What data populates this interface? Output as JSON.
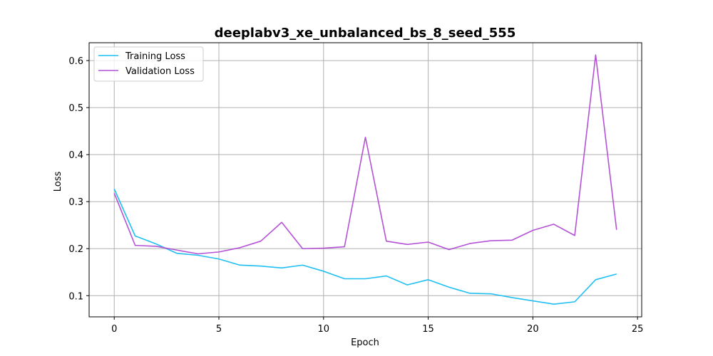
{
  "chart_data": {
    "type": "line",
    "title": "deeplabv3_xe_unbalanced_bs_8_seed_555",
    "xlabel": "Epoch",
    "ylabel": "Loss",
    "xlim": [
      -1.2,
      25.2
    ],
    "ylim": [
      0.055,
      0.638
    ],
    "xticks": [
      0,
      5,
      10,
      15,
      20,
      25
    ],
    "yticks": [
      0.1,
      0.2,
      0.3,
      0.4,
      0.5,
      0.6
    ],
    "xtick_labels": [
      "0",
      "5",
      "10",
      "15",
      "20",
      "25"
    ],
    "ytick_labels": [
      "0.1",
      "0.2",
      "0.3",
      "0.4",
      "0.5",
      "0.6"
    ],
    "grid": true,
    "legend_position": "top-left",
    "x": [
      0,
      1,
      2,
      3,
      4,
      5,
      6,
      7,
      8,
      9,
      10,
      11,
      12,
      13,
      14,
      15,
      16,
      17,
      18,
      19,
      20,
      21,
      22,
      23,
      24
    ],
    "series": [
      {
        "name": "Training Loss",
        "color": "#1fbff2",
        "values": [
          0.327,
          0.227,
          0.21,
          0.19,
          0.186,
          0.178,
          0.165,
          0.163,
          0.159,
          0.165,
          0.152,
          0.136,
          0.136,
          0.142,
          0.123,
          0.134,
          0.118,
          0.105,
          0.104,
          0.096,
          0.089,
          0.082,
          0.087,
          0.134,
          0.146
        ]
      },
      {
        "name": "Validation Loss",
        "color": "#b452d6",
        "values": [
          0.318,
          0.207,
          0.205,
          0.197,
          0.189,
          0.193,
          0.202,
          0.216,
          0.256,
          0.2,
          0.201,
          0.204,
          0.437,
          0.216,
          0.209,
          0.214,
          0.198,
          0.211,
          0.217,
          0.218,
          0.239,
          0.252,
          0.228,
          0.612,
          0.24
        ]
      }
    ]
  }
}
